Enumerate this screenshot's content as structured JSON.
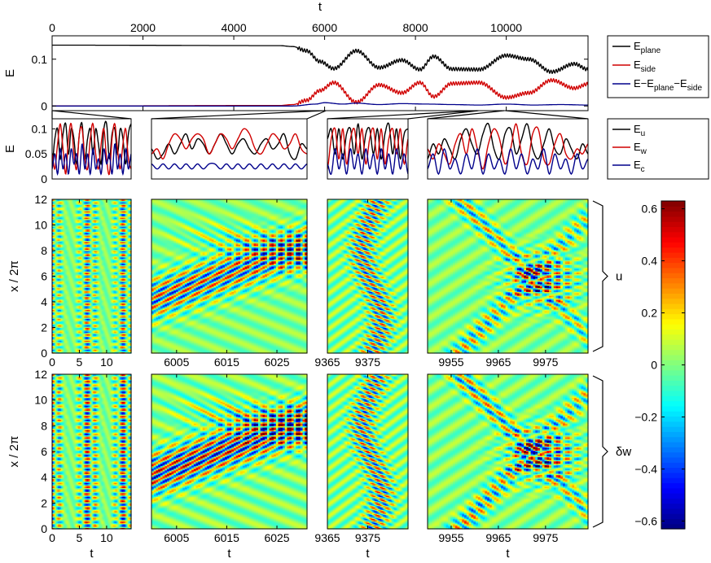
{
  "chart_data": [
    {
      "id": "energy-overview",
      "type": "line",
      "xlabel": "t",
      "ylabel": "E",
      "xlim": [
        0,
        11800
      ],
      "ylim": [
        -0.01,
        0.15
      ],
      "xticks": [
        0,
        2000,
        4000,
        6000,
        8000,
        10000
      ],
      "yticks": [
        0,
        0.1
      ],
      "xtick_labels": [
        "0",
        "2000",
        "4000",
        "6000",
        "8000",
        "10000"
      ],
      "ytick_labels": [
        "0",
        "0.1"
      ],
      "x_axis_position": "top",
      "grid": false,
      "legend": "right",
      "series": [
        {
          "key": "plane",
          "color": "#000000",
          "points": [
            [
              0,
              0.13
            ],
            [
              5000,
              0.129
            ],
            [
              5300,
              0.127
            ],
            [
              5600,
              0.118
            ],
            [
              5900,
              0.095
            ],
            [
              6200,
              0.08
            ],
            [
              6700,
              0.118
            ],
            [
              7200,
              0.082
            ],
            [
              7700,
              0.098
            ],
            [
              8100,
              0.078
            ],
            [
              8400,
              0.106
            ],
            [
              8800,
              0.079
            ],
            [
              9400,
              0.078
            ],
            [
              10000,
              0.108
            ],
            [
              10500,
              0.1
            ],
            [
              11000,
              0.073
            ],
            [
              11500,
              0.09
            ],
            [
              11800,
              0.078
            ]
          ]
        },
        {
          "key": "side",
          "color": "#d00000",
          "points": [
            [
              0,
              0
            ],
            [
              5000,
              0.001
            ],
            [
              5300,
              0.003
            ],
            [
              5600,
              0.012
            ],
            [
              5900,
              0.033
            ],
            [
              6200,
              0.05
            ],
            [
              6700,
              0.008
            ],
            [
              7200,
              0.045
            ],
            [
              7700,
              0.028
            ],
            [
              8100,
              0.05
            ],
            [
              8400,
              0.02
            ],
            [
              8800,
              0.048
            ],
            [
              9400,
              0.05
            ],
            [
              10000,
              0.018
            ],
            [
              10500,
              0.028
            ],
            [
              11000,
              0.055
            ],
            [
              11500,
              0.038
            ],
            [
              11800,
              0.047
            ]
          ]
        },
        {
          "key": "rest",
          "color": "#00008b",
          "points": [
            [
              0,
              0
            ],
            [
              5300,
              0
            ],
            [
              5800,
              0.004
            ],
            [
              6000,
              0.007
            ],
            [
              6400,
              0.004
            ],
            [
              6700,
              0.006
            ],
            [
              7200,
              0.003
            ],
            [
              7700,
              0.005
            ],
            [
              8300,
              0.004
            ],
            [
              8800,
              0.003
            ],
            [
              9400,
              0.002
            ],
            [
              10000,
              0.004
            ],
            [
              10600,
              0.002
            ],
            [
              11200,
              0.003
            ],
            [
              11800,
              0.002
            ]
          ]
        }
      ]
    },
    {
      "id": "energy-window-1",
      "type": "line",
      "ylabel": "E",
      "xlim": [
        0,
        14.5
      ],
      "ylim": [
        0,
        0.12
      ],
      "yticks": [
        0,
        0.05,
        0.1
      ],
      "ytick_labels": [
        "0",
        "0.05",
        "0.1"
      ],
      "series": [
        {
          "key": "u",
          "color": "#000000",
          "values": [
            0.03,
            0.08,
            0.1,
            0.04,
            0.09,
            0.11,
            0.05,
            0.1,
            0.08,
            0.03,
            0.09,
            0.11,
            0.04,
            0.08,
            0.1,
            0.05,
            0.1,
            0.07,
            0.03,
            0.1,
            0.11,
            0.04,
            0.09,
            0.1,
            0.05,
            0.1,
            0.08,
            0.03,
            0.09,
            0.11
          ]
        },
        {
          "key": "w",
          "color": "#d00000",
          "values": [
            0.05,
            0.02,
            0.07,
            0.11,
            0.06,
            0.01,
            0.08,
            0.11,
            0.05,
            0.02,
            0.09,
            0.1,
            0.04,
            0.02,
            0.08,
            0.11,
            0.05,
            0.02,
            0.07,
            0.1,
            0.04,
            0.01,
            0.08,
            0.11,
            0.06,
            0.02,
            0.07,
            0.1,
            0.04,
            0.02
          ]
        },
        {
          "key": "c",
          "color": "#00008b",
          "values": [
            0.02,
            0.05,
            0.01,
            0.06,
            0.02,
            0.05,
            0.01,
            0.06,
            0.03,
            0.05,
            0.01,
            0.07,
            0.02,
            0.05,
            0.01,
            0.06,
            0.02,
            0.04,
            0.01,
            0.06,
            0.03,
            0.05,
            0.01,
            0.07,
            0.02,
            0.05,
            0.01,
            0.06,
            0.02,
            0.05
          ]
        }
      ]
    },
    {
      "id": "energy-window-2",
      "type": "line",
      "xlim": [
        6000,
        6031
      ],
      "ylim": [
        0,
        0.12
      ],
      "series": [
        {
          "key": "u",
          "color": "#000000",
          "values": [
            0.06,
            0.04,
            0.05,
            0.07,
            0.05,
            0.07,
            0.09,
            0.06,
            0.08,
            0.07,
            0.05,
            0.07,
            0.09,
            0.07,
            0.05,
            0.07,
            0.08,
            0.06,
            0.05,
            0.07,
            0.08,
            0.06,
            0.07,
            0.09,
            0.05,
            0.04,
            0.07,
            0.06
          ]
        },
        {
          "key": "w",
          "color": "#d00000",
          "values": [
            0.05,
            0.06,
            0.04,
            0.07,
            0.09,
            0.08,
            0.06,
            0.08,
            0.09,
            0.08,
            0.05,
            0.07,
            0.09,
            0.08,
            0.06,
            0.08,
            0.1,
            0.09,
            0.06,
            0.05,
            0.07,
            0.09,
            0.08,
            0.06,
            0.07,
            0.09,
            0.06,
            0.05
          ]
        },
        {
          "key": "c",
          "color": "#00008b",
          "values": [
            0.03,
            0.02,
            0.03,
            0.02,
            0.03,
            0.02,
            0.03,
            0.02,
            0.03,
            0.02,
            0.03,
            0.03,
            0.02,
            0.03,
            0.02,
            0.03,
            0.02,
            0.03,
            0.02,
            0.03,
            0.02,
            0.03,
            0.02,
            0.03,
            0.02,
            0.03,
            0.02,
            0.03
          ]
        }
      ]
    },
    {
      "id": "energy-window-3",
      "type": "line",
      "xlim": [
        9365,
        9385
      ],
      "ylim": [
        0,
        0.12
      ],
      "series": [
        {
          "key": "u",
          "color": "#000000",
          "values": [
            0.08,
            0.1,
            0.05,
            0.1,
            0.04,
            0.09,
            0.1,
            0.05,
            0.11,
            0.04,
            0.09,
            0.1,
            0.05,
            0.1,
            0.04,
            0.09,
            0.11,
            0.05,
            0.1,
            0.04,
            0.09,
            0.1
          ]
        },
        {
          "key": "w",
          "color": "#d00000",
          "values": [
            0.02,
            0.08,
            0.1,
            0.04,
            0.1,
            0.03,
            0.08,
            0.1,
            0.05,
            0.1,
            0.03,
            0.08,
            0.1,
            0.04,
            0.1,
            0.03,
            0.08,
            0.1,
            0.05,
            0.1,
            0.03,
            0.08
          ]
        },
        {
          "key": "c",
          "color": "#00008b",
          "values": [
            0.03,
            0.01,
            0.06,
            0.02,
            0.05,
            0.01,
            0.06,
            0.02,
            0.05,
            0.01,
            0.06,
            0.02,
            0.05,
            0.01,
            0.06,
            0.02,
            0.05,
            0.01,
            0.06,
            0.02,
            0.05,
            0.01
          ]
        }
      ]
    },
    {
      "id": "energy-window-4",
      "type": "line",
      "xlim": [
        9950,
        9984
      ],
      "ylim": [
        0,
        0.12
      ],
      "series": [
        {
          "key": "u",
          "color": "#000000",
          "values": [
            0.04,
            0.07,
            0.05,
            0.08,
            0.06,
            0.04,
            0.08,
            0.1,
            0.07,
            0.05,
            0.09,
            0.11,
            0.06,
            0.04,
            0.09,
            0.1,
            0.05,
            0.08,
            0.11,
            0.06,
            0.04,
            0.07,
            0.1,
            0.06,
            0.05,
            0.08,
            0.06,
            0.04,
            0.07,
            0.05
          ]
        },
        {
          "key": "w",
          "color": "#d00000",
          "values": [
            0.06,
            0.04,
            0.07,
            0.05,
            0.03,
            0.07,
            0.09,
            0.05,
            0.1,
            0.06,
            0.02,
            0.07,
            0.1,
            0.08,
            0.03,
            0.06,
            0.11,
            0.05,
            0.03,
            0.09,
            0.1,
            0.04,
            0.03,
            0.07,
            0.09,
            0.05,
            0.04,
            0.06,
            0.05,
            0.07
          ]
        },
        {
          "key": "c",
          "color": "#00008b",
          "values": [
            0.02,
            0.05,
            0.01,
            0.06,
            0.02,
            0.04,
            0.01,
            0.05,
            0.02,
            0.06,
            0.01,
            0.05,
            0.02,
            0.04,
            0.01,
            0.06,
            0.02,
            0.05,
            0.01,
            0.04,
            0.02,
            0.06,
            0.01,
            0.05,
            0.02,
            0.04,
            0.01,
            0.05,
            0.02,
            0.04
          ]
        }
      ]
    },
    {
      "id": "field-maps",
      "type": "heatmap",
      "ylabel": "x / 2π",
      "xlabel": "t",
      "ylim": [
        0,
        12
      ],
      "yticks": [
        0,
        2,
        4,
        6,
        8,
        10,
        12
      ],
      "ytick_labels": [
        "0",
        "2",
        "4",
        "6",
        "8",
        "10",
        "12"
      ],
      "columns": [
        {
          "xlim": [
            0,
            14.5
          ],
          "ticks": [
            0,
            5,
            10
          ],
          "tick_labels": [
            "0",
            "5",
            "10"
          ]
        },
        {
          "xlim": [
            6000,
            6031
          ],
          "ticks": [
            6005,
            6015,
            6025
          ],
          "tick_labels": [
            "6005",
            "6015",
            "6025"
          ]
        },
        {
          "xlim": [
            9365,
            9385
          ],
          "ticks": [
            9365,
            9375
          ],
          "tick_labels": [
            "9365",
            "9375"
          ]
        },
        {
          "xlim": [
            9950,
            9984
          ],
          "ticks": [
            9955,
            9965,
            9975
          ],
          "tick_labels": [
            "9955",
            "9965",
            "9975"
          ]
        }
      ],
      "rows": [
        {
          "field": "u",
          "label": "u"
        },
        {
          "field": "dw",
          "label": "δw"
        }
      ],
      "colorbar": {
        "range": [
          -0.63,
          0.63
        ],
        "ticks": [
          -0.6,
          -0.4,
          -0.2,
          0,
          0.2,
          0.4,
          0.6
        ],
        "tick_labels": [
          "−0.6",
          "−0.4",
          "−0.2",
          "0",
          "0.2",
          "0.4",
          "0.6"
        ],
        "colormap": "jet"
      }
    }
  ],
  "legends": {
    "top": [
      {
        "base": "E",
        "sub": "plane",
        "color": "#000000"
      },
      {
        "base": "E",
        "sub": "side",
        "color": "#d00000"
      },
      {
        "base": "E−E",
        "sub": "plane",
        "tail": "−E",
        "sub2": "side",
        "color": "#00008b"
      }
    ],
    "bottom": [
      {
        "base": "E",
        "sub": "u",
        "color": "#000000"
      },
      {
        "base": "E",
        "sub": "w",
        "color": "#d00000"
      },
      {
        "base": "E",
        "sub": "c",
        "color": "#00008b"
      }
    ]
  }
}
